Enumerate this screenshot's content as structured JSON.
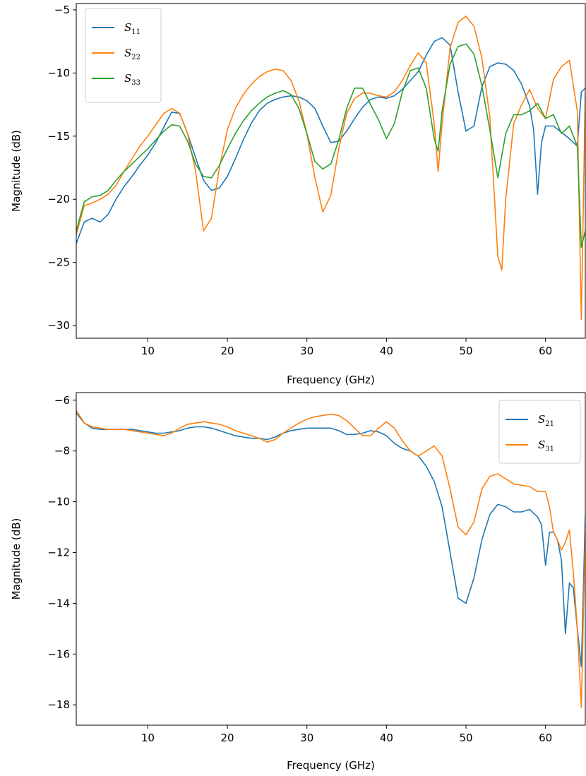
{
  "chart_data": [
    {
      "type": "line",
      "xlabel": "Frequency (GHz)",
      "ylabel": "Magnitude (dB)",
      "xlim": [
        1,
        65
      ],
      "ylim": [
        -31,
        -4.5
      ],
      "xticks": [
        10,
        20,
        30,
        40,
        50,
        60
      ],
      "yticks": [
        -30,
        -25,
        -20,
        -15,
        -10,
        -5
      ],
      "xtick_labels": [
        "10",
        "20",
        "30",
        "40",
        "50",
        "60"
      ],
      "ytick_labels": [
        "−30",
        "−25",
        "−20",
        "−15",
        "−10",
        "−5"
      ],
      "legend_position": "top-left",
      "series": [
        {
          "name": "S11",
          "label_base": "S",
          "label_sub": "11",
          "color": "#1f77b4",
          "x": [
            1,
            2,
            3,
            4,
            5,
            6,
            7,
            8,
            9,
            10,
            11,
            12,
            13,
            14,
            15,
            16,
            17,
            18,
            19,
            20,
            21,
            22,
            23,
            24,
            25,
            26,
            27,
            28,
            29,
            30,
            31,
            32,
            33,
            34,
            35,
            36,
            37,
            38,
            39,
            40,
            41,
            42,
            43,
            44,
            45,
            46,
            47,
            48,
            49,
            50,
            51,
            52,
            53,
            54,
            55,
            56,
            57,
            58,
            58.5,
            59,
            59.5,
            60,
            61,
            62,
            63,
            64,
            64.5,
            65
          ],
          "y": [
            -23.5,
            -21.8,
            -21.5,
            -21.8,
            -21.2,
            -20,
            -19,
            -18.2,
            -17.3,
            -16.5,
            -15.5,
            -14.3,
            -13.1,
            -13.2,
            -14.8,
            -16.7,
            -18.5,
            -19.3,
            -19.1,
            -18.2,
            -16.8,
            -15.3,
            -14,
            -13,
            -12.4,
            -12.1,
            -11.9,
            -11.8,
            -11.9,
            -12.2,
            -12.8,
            -14.2,
            -15.5,
            -15.4,
            -14.6,
            -13.6,
            -12.7,
            -12.1,
            -11.9,
            -12,
            -11.8,
            -11.3,
            -10.6,
            -9.9,
            -8.6,
            -7.5,
            -7.2,
            -7.8,
            -11.5,
            -14.6,
            -14.2,
            -11.1,
            -9.5,
            -9.2,
            -9.3,
            -9.8,
            -10.9,
            -12.6,
            -14.5,
            -19.6,
            -15.5,
            -14.2,
            -14.2,
            -14.7,
            -15.2,
            -15.8,
            -11.5,
            -11.2
          ]
        },
        {
          "name": "S22",
          "label_base": "S",
          "label_sub": "22",
          "color": "#ff7f0e",
          "x": [
            1,
            2,
            3,
            4,
            5,
            6,
            7,
            8,
            9,
            10,
            11,
            12,
            13,
            14,
            15,
            16,
            17,
            18,
            19,
            20,
            21,
            22,
            23,
            24,
            25,
            26,
            27,
            28,
            29,
            30,
            31,
            32,
            33,
            34,
            35,
            36,
            37,
            38,
            39,
            40,
            41,
            42,
            43,
            44,
            45,
            46,
            46.5,
            47,
            48,
            49,
            50,
            51,
            52,
            53,
            54,
            54.5,
            55,
            56,
            57,
            58,
            59,
            60,
            61,
            62,
            63,
            64,
            64.5,
            65
          ],
          "y": [
            -22.8,
            -20.5,
            -20.3,
            -20,
            -19.6,
            -18.9,
            -17.8,
            -16.8,
            -15.8,
            -15,
            -14.1,
            -13.2,
            -12.8,
            -13.2,
            -14.8,
            -17.8,
            -22.5,
            -21.5,
            -17.5,
            -14.5,
            -12.8,
            -11.7,
            -10.9,
            -10.3,
            -9.9,
            -9.7,
            -9.8,
            -10.6,
            -12.2,
            -14.8,
            -18.3,
            -21,
            -19.7,
            -16,
            -13.2,
            -12,
            -11.6,
            -11.6,
            -11.8,
            -11.9,
            -11.5,
            -10.6,
            -9.4,
            -8.4,
            -9.2,
            -14,
            -17.8,
            -14,
            -8,
            -6,
            -5.5,
            -6.3,
            -8.8,
            -13.5,
            -24.5,
            -25.6,
            -20,
            -14,
            -12.5,
            -11.3,
            -12.8,
            -13.6,
            -10.5,
            -9.5,
            -9,
            -13,
            -29.5,
            -11.5
          ]
        },
        {
          "name": "S33",
          "label_base": "S",
          "label_sub": "33",
          "color": "#2ca02c",
          "x": [
            1,
            2,
            3,
            4,
            5,
            6,
            7,
            8,
            9,
            10,
            11,
            12,
            13,
            14,
            15,
            16,
            17,
            18,
            19,
            20,
            21,
            22,
            23,
            24,
            25,
            26,
            27,
            28,
            29,
            30,
            31,
            32,
            33,
            34,
            35,
            36,
            37,
            38,
            39,
            40,
            41,
            42,
            43,
            44,
            45,
            46,
            46.5,
            47,
            48,
            49,
            50,
            51,
            52,
            53,
            54,
            55,
            56,
            57,
            58,
            59,
            60,
            61,
            62,
            63,
            64,
            64.5,
            65
          ],
          "y": [
            -22.5,
            -20.2,
            -19.8,
            -19.7,
            -19.3,
            -18.5,
            -17.8,
            -17.2,
            -16.6,
            -16,
            -15.3,
            -14.6,
            -14.1,
            -14.2,
            -15.4,
            -17.2,
            -18.2,
            -18.3,
            -17.3,
            -16,
            -14.8,
            -13.8,
            -13,
            -12.4,
            -11.9,
            -11.6,
            -11.4,
            -11.7,
            -12.8,
            -14.8,
            -17,
            -17.6,
            -17.2,
            -15.3,
            -12.8,
            -11.2,
            -11.2,
            -12.5,
            -13.7,
            -15.2,
            -14,
            -11.5,
            -9.8,
            -9.6,
            -11.2,
            -15.2,
            -16.2,
            -13,
            -9.3,
            -7.9,
            -7.7,
            -8.5,
            -11,
            -14.5,
            -18.3,
            -14.8,
            -13.3,
            -13.3,
            -13,
            -12.4,
            -13.6,
            -13.3,
            -14.8,
            -14.2,
            -15.8,
            -23.8,
            -22.5
          ]
        }
      ]
    },
    {
      "type": "line",
      "xlabel": "Frequency (GHz)",
      "ylabel": "Magnitude (dB)",
      "xlim": [
        1,
        65
      ],
      "ylim": [
        -18.8,
        -5.7
      ],
      "xticks": [
        10,
        20,
        30,
        40,
        50,
        60
      ],
      "yticks": [
        -18,
        -16,
        -14,
        -12,
        -10,
        -8,
        -6
      ],
      "xtick_labels": [
        "10",
        "20",
        "30",
        "40",
        "50",
        "60"
      ],
      "ytick_labels": [
        "−18",
        "−16",
        "−14",
        "−12",
        "−10",
        "−8",
        "−6"
      ],
      "legend_position": "top-right",
      "series": [
        {
          "name": "S21",
          "label_base": "S",
          "label_sub": "21",
          "color": "#1f77b4",
          "x": [
            1,
            2,
            3,
            4,
            5,
            6,
            7,
            8,
            9,
            10,
            11,
            12,
            13,
            14,
            15,
            16,
            17,
            18,
            19,
            20,
            21,
            22,
            23,
            24,
            25,
            26,
            27,
            28,
            29,
            30,
            31,
            32,
            33,
            34,
            35,
            36,
            37,
            38,
            39,
            40,
            41,
            42,
            43,
            44,
            45,
            46,
            47,
            48,
            49,
            50,
            51,
            52,
            53,
            54,
            55,
            56,
            57,
            58,
            59,
            59.5,
            60,
            60.5,
            61,
            61.5,
            62,
            62.5,
            63,
            63.5,
            64,
            64.5,
            65
          ],
          "y": [
            -6.5,
            -6.9,
            -7.1,
            -7.15,
            -7.15,
            -7.15,
            -7.15,
            -7.15,
            -7.2,
            -7.25,
            -7.3,
            -7.3,
            -7.25,
            -7.2,
            -7.1,
            -7.05,
            -7.05,
            -7.1,
            -7.2,
            -7.3,
            -7.4,
            -7.45,
            -7.5,
            -7.5,
            -7.55,
            -7.45,
            -7.3,
            -7.2,
            -7.15,
            -7.1,
            -7.1,
            -7.1,
            -7.1,
            -7.2,
            -7.35,
            -7.35,
            -7.3,
            -7.2,
            -7.25,
            -7.4,
            -7.7,
            -7.9,
            -8.0,
            -8.2,
            -8.6,
            -9.2,
            -10.2,
            -12,
            -13.8,
            -14,
            -13,
            -11.5,
            -10.5,
            -10.1,
            -10.2,
            -10.4,
            -10.4,
            -10.3,
            -10.6,
            -10.9,
            -12.5,
            -11.2,
            -11.2,
            -11.5,
            -12.3,
            -15.2,
            -13.2,
            -13.4,
            -15,
            -16.5,
            -10.5
          ]
        },
        {
          "name": "S31",
          "label_base": "S",
          "label_sub": "31",
          "color": "#ff7f0e",
          "x": [
            1,
            2,
            3,
            4,
            5,
            6,
            7,
            8,
            9,
            10,
            11,
            12,
            13,
            14,
            15,
            16,
            17,
            18,
            19,
            20,
            21,
            22,
            23,
            24,
            25,
            26,
            27,
            28,
            29,
            30,
            31,
            32,
            33,
            34,
            35,
            36,
            37,
            38,
            39,
            40,
            41,
            42,
            43,
            44,
            45,
            46,
            47,
            48,
            49,
            50,
            51,
            52,
            53,
            54,
            55,
            56,
            57,
            58,
            59,
            59.5,
            60,
            60.5,
            61,
            61.5,
            62,
            62.5,
            63,
            63.5,
            64,
            64.5,
            65
          ],
          "y": [
            -6.4,
            -6.9,
            -7.05,
            -7.1,
            -7.15,
            -7.15,
            -7.15,
            -7.2,
            -7.25,
            -7.3,
            -7.35,
            -7.4,
            -7.3,
            -7.1,
            -6.95,
            -6.9,
            -6.85,
            -6.9,
            -6.95,
            -7.05,
            -7.2,
            -7.3,
            -7.4,
            -7.5,
            -7.65,
            -7.55,
            -7.3,
            -7.1,
            -6.9,
            -6.75,
            -6.65,
            -6.6,
            -6.55,
            -6.6,
            -6.8,
            -7.1,
            -7.4,
            -7.4,
            -7.1,
            -6.85,
            -7.1,
            -7.6,
            -8.0,
            -8.2,
            -8.0,
            -7.8,
            -8.2,
            -9.5,
            -11,
            -11.3,
            -10.8,
            -9.5,
            -9.0,
            -8.9,
            -9.1,
            -9.3,
            -9.35,
            -9.4,
            -9.6,
            -9.6,
            -9.6,
            -10.2,
            -11.2,
            -11.5,
            -11.9,
            -11.6,
            -11.1,
            -12.8,
            -15,
            -18.1,
            -11
          ]
        }
      ]
    }
  ]
}
